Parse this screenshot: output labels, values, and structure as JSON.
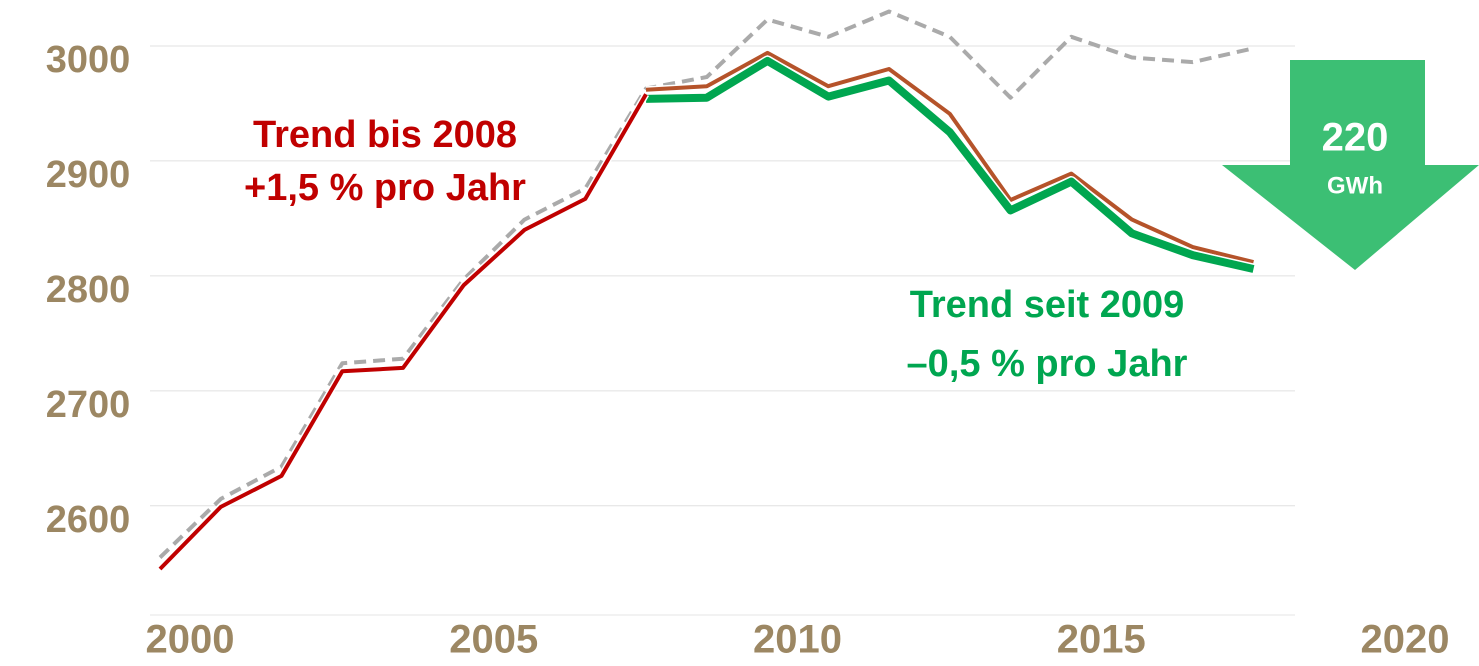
{
  "chart_data": {
    "type": "line",
    "x": [
      2000,
      2001,
      2002,
      2003,
      2004,
      2005,
      2006,
      2007,
      2008,
      2009,
      2010,
      2011,
      2012,
      2013,
      2014,
      2015,
      2016,
      2017,
      2018
    ],
    "series": [
      {
        "color": "#aaaaaa",
        "dashed": true,
        "values": [
          2555,
          2606,
          2634,
          2724,
          2728,
          2797,
          2849,
          2876,
          2963,
          2973,
          3023,
          3008,
          3030,
          3008,
          2955,
          3008,
          2990,
          2986,
          2998
        ]
      },
      {
        "color": "#b5532a",
        "values": [
          null,
          null,
          null,
          null,
          null,
          null,
          null,
          null,
          2962,
          2965,
          2994,
          2965,
          2980,
          2941,
          2866,
          2889,
          2849,
          2825,
          2812
        ]
      },
      {
        "color": "#00a650",
        "width": 8,
        "values": [
          null,
          null,
          null,
          null,
          null,
          null,
          null,
          null,
          2954,
          2955,
          2987,
          2956,
          2970,
          2925,
          2857,
          2882,
          2837,
          2818,
          2806
        ]
      },
      {
        "color": "#c00000",
        "values": [
          2545,
          2599,
          2626,
          2717,
          2720,
          2792,
          2840,
          2867,
          2958,
          null,
          null,
          null,
          null,
          null,
          null,
          null,
          null,
          null,
          null
        ]
      }
    ],
    "xlim": [
      2000,
      2020
    ],
    "xticks": [
      2000,
      2005,
      2010,
      2015,
      2020
    ],
    "ylim": [
      2505,
      3040
    ],
    "yticks": [
      2600,
      2700,
      2800,
      2900,
      3000
    ],
    "grid": true,
    "annotations": [
      {
        "lines": [
          "Trend bis 2008",
          "+1,5 % pro Jahr"
        ],
        "color": "#c00000"
      },
      {
        "lines": [
          "Trend seit 2009",
          "–0,5 % pro Jahr"
        ],
        "color": "#00a650"
      }
    ],
    "arrow": {
      "value": "220",
      "unit": "GWh",
      "color": "#3cbf74"
    }
  }
}
